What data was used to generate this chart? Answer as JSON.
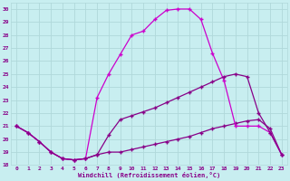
{
  "xlabel": "Windchill (Refroidissement éolien,°C)",
  "xlim": [
    -0.5,
    23.5
  ],
  "ylim": [
    18,
    30.5
  ],
  "yticks": [
    18,
    19,
    20,
    21,
    22,
    23,
    24,
    25,
    26,
    27,
    28,
    29,
    30
  ],
  "xticks": [
    0,
    1,
    2,
    3,
    4,
    5,
    6,
    7,
    8,
    9,
    10,
    11,
    12,
    13,
    14,
    15,
    16,
    17,
    18,
    19,
    20,
    21,
    22,
    23
  ],
  "bg_color": "#c8eef0",
  "grid_color": "#b0d8da",
  "line_color_bright": "#cc00cc",
  "line_color_dark": "#880088",
  "curve1_x": [
    0,
    1,
    2,
    3,
    4,
    5,
    6,
    7,
    8,
    9,
    10,
    11,
    12,
    13,
    14,
    15,
    16,
    17,
    18,
    19,
    20,
    21,
    22,
    23
  ],
  "curve1_y": [
    21.0,
    20.5,
    19.8,
    19.0,
    18.5,
    18.4,
    18.5,
    18.8,
    19.0,
    19.0,
    19.2,
    19.4,
    19.6,
    19.8,
    20.0,
    20.2,
    20.5,
    20.8,
    21.0,
    21.2,
    21.4,
    21.5,
    20.8,
    18.8
  ],
  "curve2_x": [
    0,
    1,
    2,
    3,
    4,
    5,
    6,
    7,
    8,
    9,
    10,
    11,
    12,
    13,
    14,
    15,
    16,
    17,
    18,
    19,
    20,
    21,
    22,
    23
  ],
  "curve2_y": [
    21.0,
    20.5,
    19.8,
    19.0,
    18.5,
    18.4,
    18.5,
    23.2,
    25.0,
    26.5,
    28.0,
    28.3,
    29.2,
    29.9,
    30.0,
    30.0,
    29.2,
    26.6,
    24.5,
    21.0,
    21.0,
    21.0,
    20.5,
    18.8
  ],
  "curve3_x": [
    0,
    1,
    2,
    3,
    4,
    5,
    6,
    7,
    8,
    9,
    10,
    11,
    12,
    13,
    14,
    15,
    16,
    17,
    18,
    19,
    20,
    21,
    22,
    23
  ],
  "curve3_y": [
    21.0,
    20.5,
    19.8,
    19.0,
    18.5,
    18.4,
    18.5,
    18.8,
    20.3,
    21.5,
    21.8,
    22.1,
    22.4,
    22.8,
    23.2,
    23.6,
    24.0,
    24.4,
    24.8,
    25.0,
    24.8,
    22.0,
    20.5,
    18.8
  ]
}
